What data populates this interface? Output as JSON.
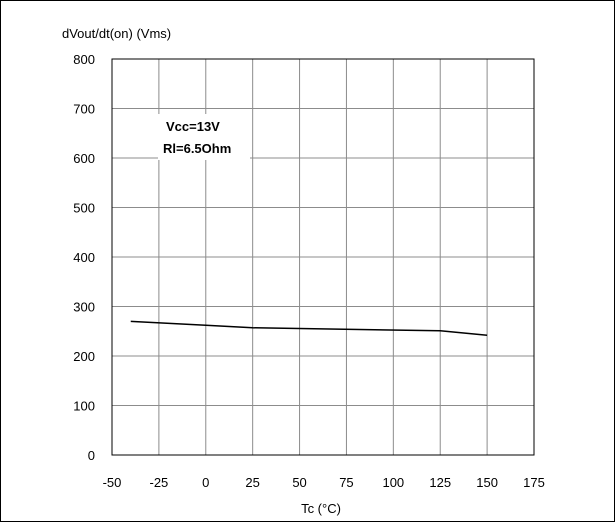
{
  "chart_data": {
    "type": "line",
    "ylabel": "dVout/dt(on) (Vms)",
    "xlabel": "Tc (°C)",
    "xlim": [
      -50,
      175
    ],
    "ylim": [
      0,
      800
    ],
    "x_ticks": [
      -50,
      -25,
      0,
      25,
      50,
      75,
      100,
      125,
      150,
      175
    ],
    "y_ticks": [
      0,
      100,
      200,
      300,
      400,
      500,
      600,
      700,
      800
    ],
    "x_tick_labels": [
      "-50",
      "-25",
      "0",
      "25",
      "50",
      "75",
      "100",
      "125",
      "150",
      "175"
    ],
    "y_tick_labels": [
      "0",
      "100",
      "200",
      "300",
      "400",
      "500",
      "600",
      "700",
      "800"
    ],
    "grid": true,
    "annotation": {
      "lines": [
        "Vcc=13V",
        "Rl=6.5Ohm"
      ]
    },
    "series": [
      {
        "x": [
          -40,
          0,
          25,
          125,
          150
        ],
        "y": [
          270,
          262,
          257,
          251,
          242
        ]
      }
    ],
    "colors": {
      "line": "#000000",
      "grid": "#8c8c8c",
      "axis": "#000000"
    }
  }
}
